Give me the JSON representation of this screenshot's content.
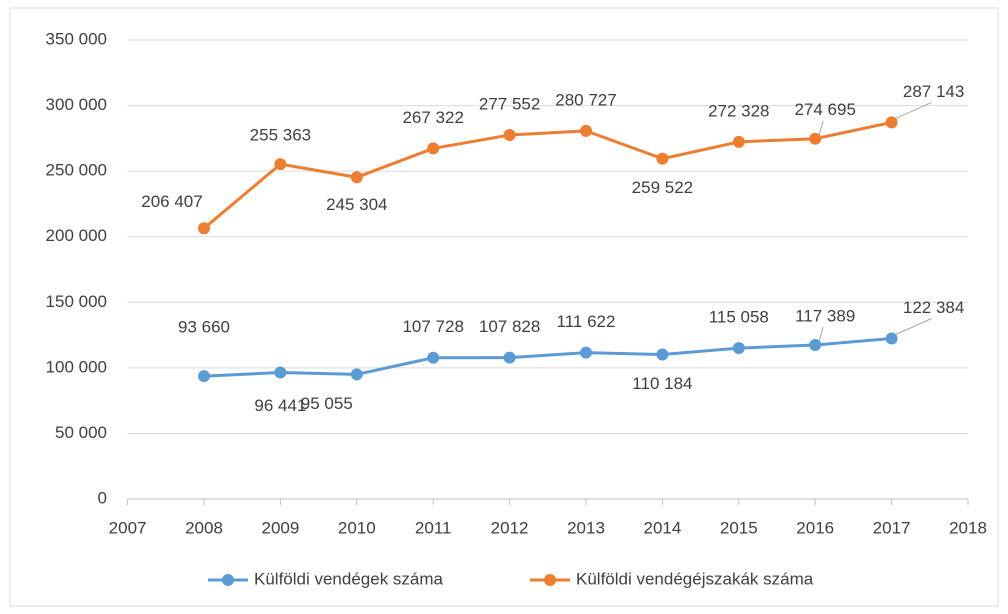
{
  "chart_data": {
    "type": "line",
    "x": [
      2008,
      2009,
      2010,
      2011,
      2012,
      2013,
      2014,
      2015,
      2016,
      2017
    ],
    "series": [
      {
        "name": "Külföldi vendégek száma",
        "color": "#5b9bd5",
        "values": [
          93660,
          96441,
          95055,
          107728,
          107828,
          111622,
          110184,
          115058,
          117389,
          122384
        ],
        "value_labels": [
          "93 660",
          "96 441",
          "95 055",
          "107 728",
          "107 828",
          "111 622",
          "110 184",
          "115 058",
          "117 389",
          "122 384"
        ]
      },
      {
        "name": "Külföldi vendégéjszakák száma",
        "color": "#ed7d31",
        "values": [
          206407,
          255363,
          245304,
          267322,
          277552,
          280727,
          259522,
          272328,
          274695,
          287143
        ],
        "value_labels": [
          "206 407",
          "255 363",
          "245 304",
          "267 322",
          "277 552",
          "280 727",
          "259 522",
          "272 328",
          "274 695",
          "287 143"
        ]
      }
    ],
    "xlim": [
      2007,
      2018
    ],
    "xticks": [
      2007,
      2008,
      2009,
      2010,
      2011,
      2012,
      2013,
      2014,
      2015,
      2016,
      2017,
      2018
    ],
    "ylim": [
      0,
      350000
    ],
    "yticks": [
      0,
      {
        "value": 50000,
        "label": "50 000"
      },
      {
        "value": 100000,
        "label": "100 000"
      },
      {
        "value": 150000,
        "label": "150 000"
      },
      {
        "value": 200000,
        "label": "200 000"
      },
      {
        "value": 250000,
        "label": "250 000"
      },
      {
        "value": 300000,
        "label": "300 000"
      },
      {
        "value": 350000,
        "label": "350 000"
      }
    ],
    "grid": true,
    "legend": "bottom"
  }
}
